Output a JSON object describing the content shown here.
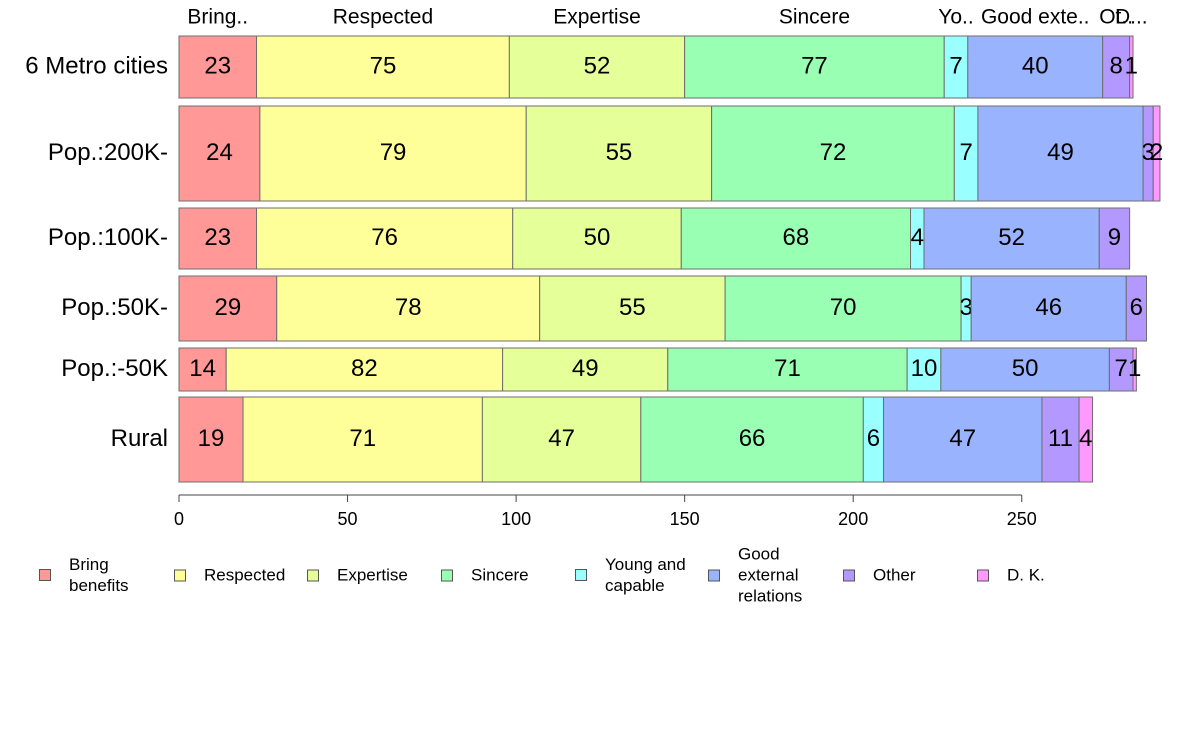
{
  "chart_data": {
    "type": "bar",
    "orientation": "horizontal",
    "stacked": true,
    "categories": [
      "6 Metro cities",
      "Pop.:200K-",
      "Pop.:100K-",
      "Pop.:50K-",
      "Pop.:-50K",
      "Rural"
    ],
    "series": [
      {
        "name": "Bring benefits",
        "top_label": "Bring..",
        "color": "#ff9896",
        "values": [
          23,
          24,
          23,
          29,
          14,
          19
        ]
      },
      {
        "name": "Respected",
        "top_label": "Respected",
        "color": "#ffff99",
        "values": [
          75,
          79,
          76,
          78,
          82,
          71
        ]
      },
      {
        "name": "Expertise",
        "top_label": "Expertise",
        "color": "#e5ff99",
        "values": [
          52,
          55,
          50,
          55,
          49,
          47
        ]
      },
      {
        "name": "Sincere",
        "top_label": "Sincere",
        "color": "#99ffb3",
        "values": [
          77,
          72,
          68,
          70,
          71,
          66
        ]
      },
      {
        "name": "Young and capable",
        "top_label": "Yo..",
        "color": "#99ffff",
        "values": [
          7,
          7,
          4,
          3,
          10,
          6
        ]
      },
      {
        "name": "Good external relations",
        "top_label": "Good exte..",
        "color": "#99b3ff",
        "values": [
          40,
          49,
          52,
          46,
          50,
          47
        ]
      },
      {
        "name": "Other",
        "top_label": "Ot..",
        "color": "#b399ff",
        "values": [
          8,
          3,
          9,
          6,
          7,
          11
        ]
      },
      {
        "name": "D. K.",
        "top_label": "D...",
        "color": "#ff99ff",
        "values": [
          1,
          2,
          0,
          0,
          1,
          4
        ]
      }
    ],
    "xlim": [
      0,
      290
    ],
    "xticks": [
      "0",
      "50",
      "100",
      "150",
      "200",
      "250"
    ],
    "legend_labels": [
      "Bring\nbenefits",
      "Respected",
      "Expertise",
      "Sincere",
      "Young and\ncapable",
      "Good\nexternal\nrelations",
      "Other",
      "D. K."
    ],
    "legend_position": "bottom",
    "grid": false
  }
}
